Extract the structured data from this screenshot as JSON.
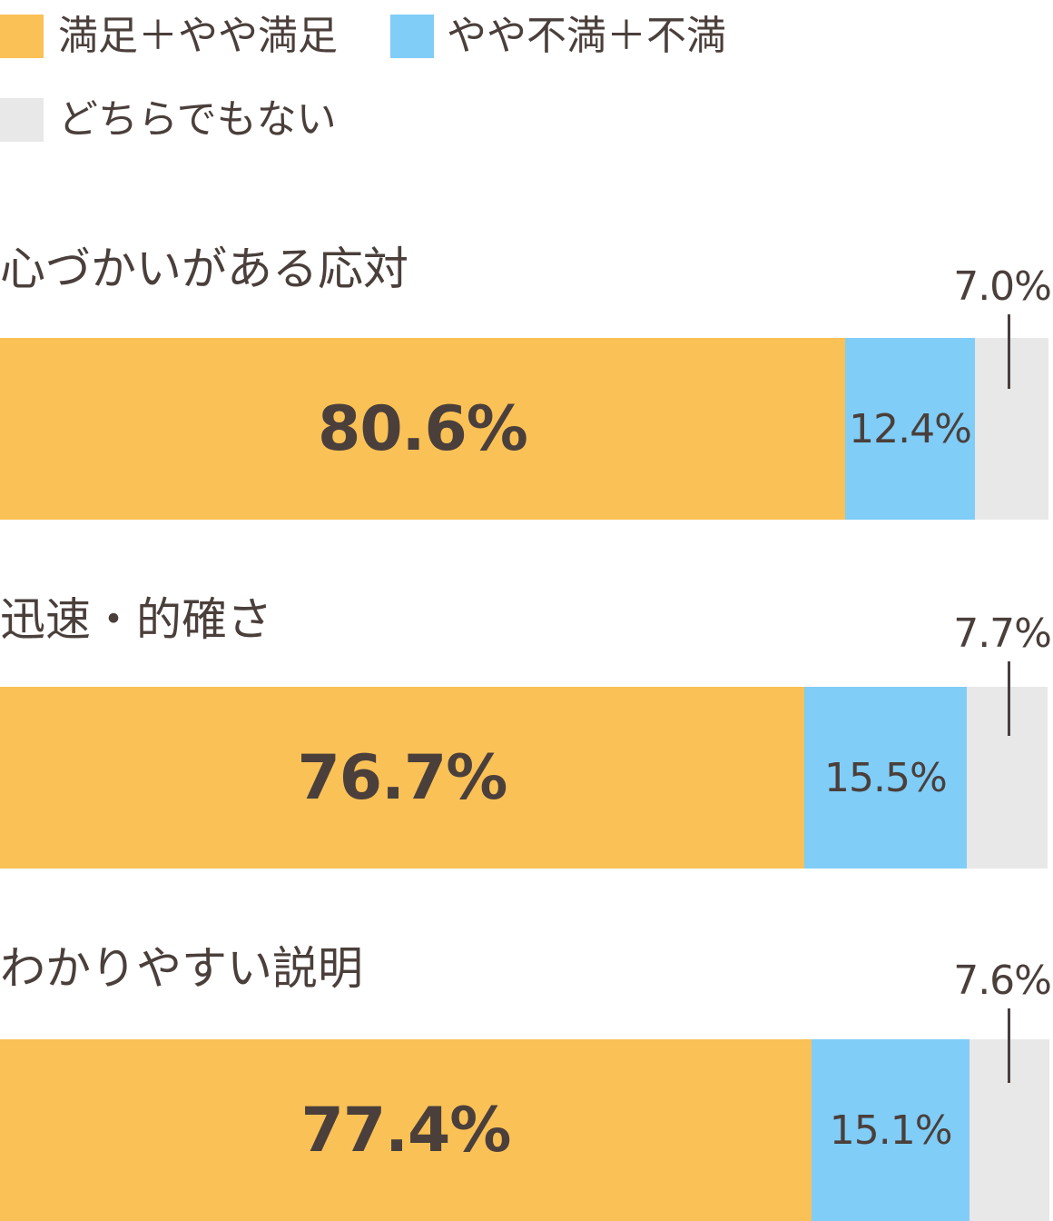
{
  "colors": {
    "satisfied": "#fac156",
    "dissatisfied": "#80cdf7",
    "neutral": "#e8e8e8",
    "text": "#4a3f3b"
  },
  "legend": [
    {
      "label": "満足＋やや満足",
      "color": "#fac156"
    },
    {
      "label": "やや不満＋不満",
      "color": "#80cdf7"
    },
    {
      "label": "どちらでもない",
      "color": "#e8e8e8"
    }
  ],
  "chart_data": {
    "type": "bar",
    "orientation": "horizontal",
    "stacked": true,
    "categories": [
      "心づかいがある応対",
      "迅速・的確さ",
      "わかりやすい説明"
    ],
    "series": [
      {
        "name": "満足＋やや満足",
        "values": [
          80.6,
          76.7,
          77.4
        ]
      },
      {
        "name": "やや不満＋不満",
        "values": [
          12.4,
          15.5,
          15.1
        ]
      },
      {
        "name": "どちらでもない",
        "values": [
          7.0,
          7.7,
          7.6
        ]
      }
    ],
    "data_labels": [
      [
        "80.6%",
        "12.4%",
        "7.0%"
      ],
      [
        "76.7%",
        "15.5%",
        "7.7%"
      ],
      [
        "77.4%",
        "15.1%",
        "7.6%"
      ]
    ],
    "xlim": [
      0,
      100
    ],
    "grid": false,
    "legend_position": "top-left"
  }
}
